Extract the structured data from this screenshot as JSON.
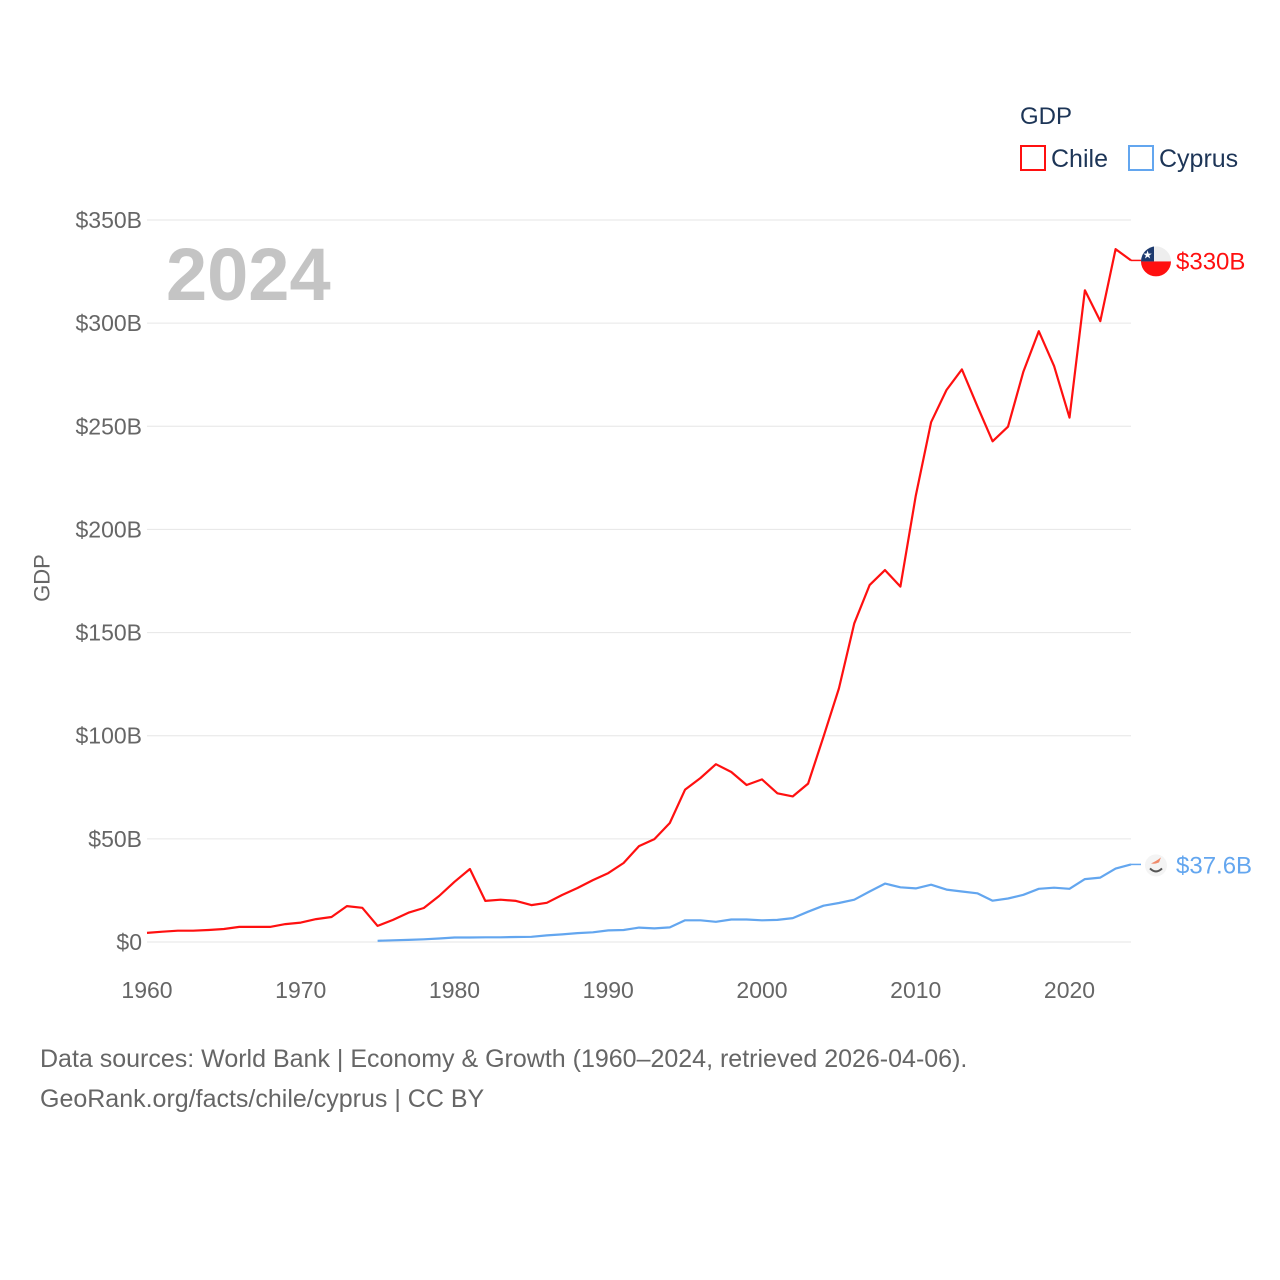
{
  "chart_data": {
    "type": "line",
    "title": "",
    "year_watermark": "2024",
    "xlabel": "",
    "ylabel": "GDP",
    "xlim": [
      1960,
      2024
    ],
    "ylim": [
      0,
      350
    ],
    "x_ticks": [
      1960,
      1970,
      1980,
      1990,
      2000,
      2010,
      2020
    ],
    "x_tick_labels": [
      "1960",
      "1970",
      "1980",
      "1990",
      "2000",
      "2010",
      "2020"
    ],
    "y_ticks": [
      0,
      50,
      100,
      150,
      200,
      250,
      300,
      350
    ],
    "y_tick_labels": [
      "$0",
      "$50B",
      "$100B",
      "$150B",
      "$200B",
      "$250B",
      "$300B",
      "$350B"
    ],
    "grid": true,
    "legend": {
      "title": "GDP",
      "placement": "top-right"
    },
    "units": "billions USD",
    "series": [
      {
        "name": "Chile",
        "color": "#ff1010",
        "end_label": "$330B",
        "flag": "chile-flag",
        "start_year": 1960,
        "values": [
          4.4,
          5.0,
          5.5,
          5.5,
          5.8,
          6.3,
          7.3,
          7.3,
          7.3,
          8.7,
          9.4,
          11.1,
          12.1,
          17.4,
          16.6,
          7.8,
          10.7,
          14.2,
          16.5,
          22.3,
          29.2,
          35.4,
          19.9,
          20.5,
          19.9,
          17.9,
          19.0,
          22.8,
          26.2,
          30.0,
          33.4,
          38.3,
          46.5,
          49.9,
          57.7,
          73.9,
          79.5,
          86.2,
          82.4,
          76.1,
          78.8,
          72.1,
          70.6,
          76.8,
          99.5,
          122.9,
          154.5,
          173.0,
          180.3,
          172.3,
          216.4,
          252.0,
          267.6,
          277.6,
          259.8,
          242.7,
          249.8,
          276.5,
          296.1,
          279.2,
          254.2,
          315.9,
          301.0,
          335.9,
          330.4
        ]
      },
      {
        "name": "Cyprus",
        "color": "#63a6ef",
        "end_label": "$37.6B",
        "flag": "cyprus-flag",
        "start_year": 1975,
        "values": [
          0.6,
          0.8,
          1.0,
          1.3,
          1.7,
          2.2,
          2.2,
          2.3,
          2.3,
          2.4,
          2.5,
          3.2,
          3.7,
          4.3,
          4.7,
          5.6,
          5.8,
          7.0,
          6.6,
          7.1,
          10.5,
          10.5,
          9.8,
          10.9,
          10.9,
          10.5,
          10.7,
          11.6,
          14.7,
          17.6,
          18.9,
          20.5,
          24.5,
          28.3,
          26.5,
          26.0,
          27.8,
          25.4,
          24.5,
          23.6,
          20.0,
          21.1,
          22.9,
          25.8,
          26.3,
          25.8,
          30.5,
          31.2,
          35.6,
          37.6
        ]
      }
    ]
  },
  "footer": {
    "line1": "Data sources: World Bank | Economy & Growth (1960–2024, retrieved 2026-04-06).",
    "line2": "GeoRank.org/facts/chile/cyprus | CC BY"
  }
}
